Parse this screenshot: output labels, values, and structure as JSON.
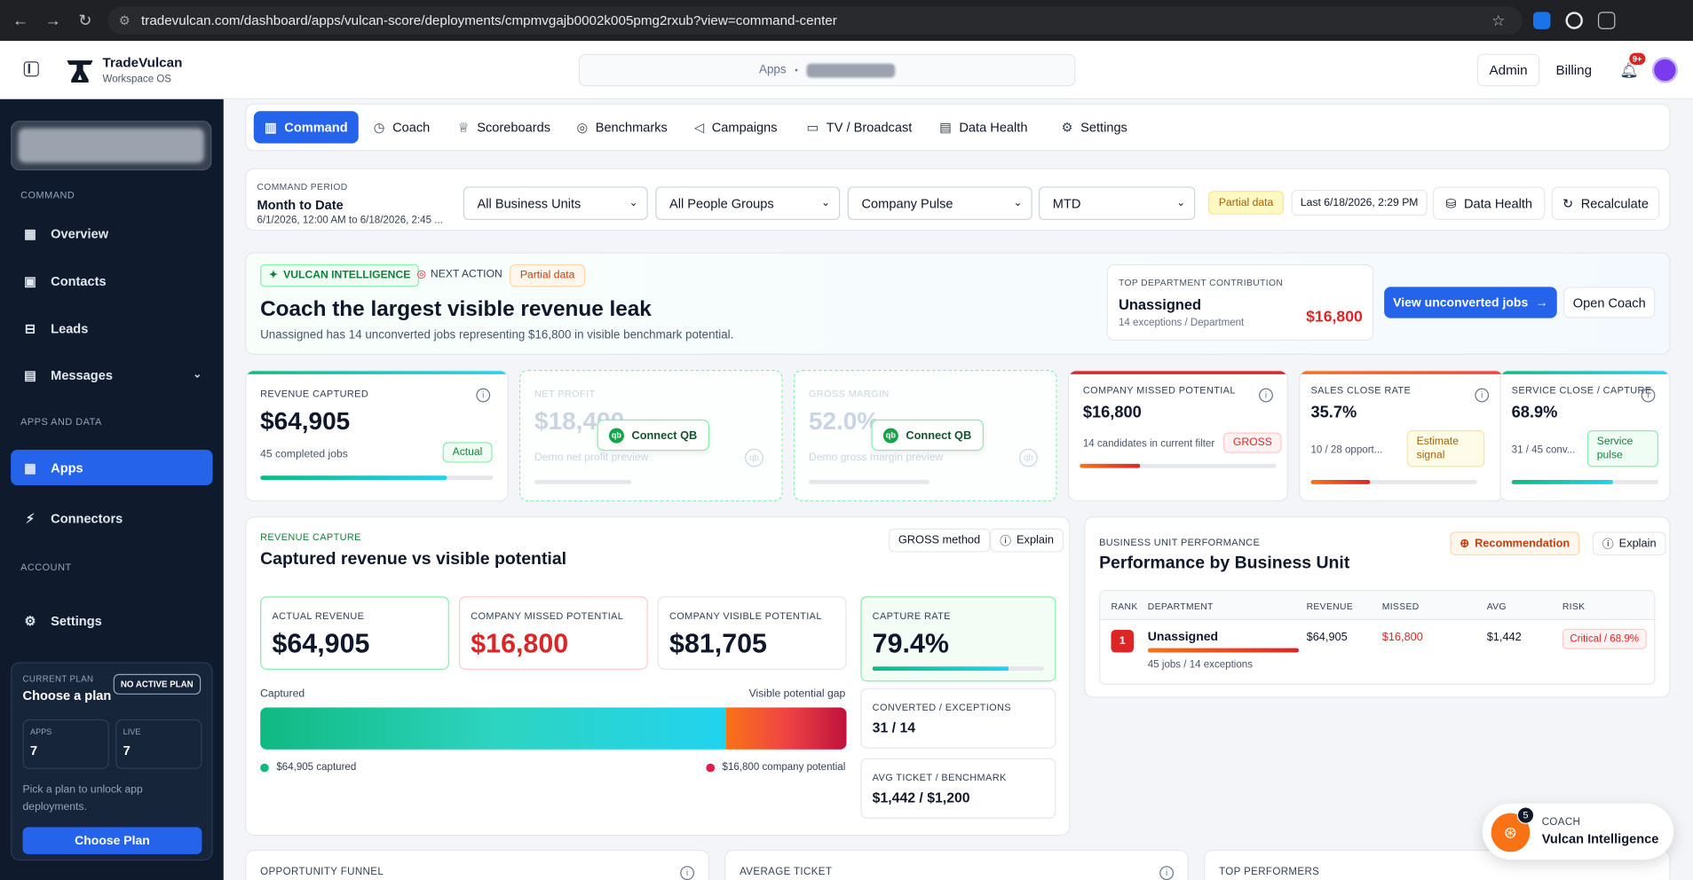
{
  "browser": {
    "url": "tradevulcan.com/dashboard/apps/vulcan-score/deployments/cmpmvgajb0002k005pmg2rxub?view=command-center"
  },
  "header": {
    "brand_name": "TradeVulcan",
    "brand_sub": "Workspace OS",
    "apps_label": "Apps",
    "apps_sep": "•",
    "admin": "Admin",
    "billing": "Billing",
    "notif_count": "9+"
  },
  "sidebar": {
    "sections": {
      "command": "COMMAND",
      "apps": "APPS AND DATA",
      "account": "ACCOUNT"
    },
    "items": {
      "overview": "Overview",
      "contacts": "Contacts",
      "leads": "Leads",
      "messages": "Messages",
      "apps": "Apps",
      "connectors": "Connectors",
      "settings": "Settings"
    },
    "plan": {
      "label": "CURRENT PLAN",
      "title": "Choose a plan",
      "badge": "NO ACTIVE PLAN",
      "apps_label": "APPS",
      "apps_value": "7",
      "live_label": "LIVE",
      "live_value": "7",
      "desc": "Pick a plan to unlock app deployments.",
      "button": "Choose Plan"
    }
  },
  "tabs": [
    "Command",
    "Coach",
    "Scoreboards",
    "Benchmarks",
    "Campaigns",
    "TV / Broadcast",
    "Data Health",
    "Settings"
  ],
  "period": {
    "label": "COMMAND PERIOD",
    "value": "Month to Date",
    "range": "6/1/2026, 12:00 AM to 6/18/2026, 2:45 ...",
    "business_unit": "All Business Units",
    "people_group": "All People Groups",
    "pulse": "Company Pulse",
    "range_select": "MTD",
    "partial": "Partial data",
    "last": "Last 6/18/2026, 2:29 PM",
    "data_health": "Data Health",
    "recalculate": "Recalculate"
  },
  "intel": {
    "badge": "VULCAN INTELLIGENCE",
    "next_action": "NEXT ACTION",
    "partial": "Partial data",
    "title": "Coach the largest visible revenue leak",
    "subtitle": "Unassigned has 14 unconverted jobs representing $16,800 in visible benchmark potential.",
    "top_label": "TOP DEPARTMENT CONTRIBUTION",
    "top_value": "Unassigned",
    "top_sub": "14 exceptions / Department",
    "top_amount": "$16,800",
    "view_btn": "View unconverted jobs",
    "coach_btn": "Open Coach"
  },
  "metrics": {
    "revenue": {
      "label": "REVENUE CAPTURED",
      "value": "$64,905",
      "sub": "45 completed jobs",
      "tag": "Actual",
      "progress": 0.8
    },
    "net_profit": {
      "label": "NET PROFIT",
      "value": "$18,400",
      "sub": "Demo net profit preview",
      "cta": "Connect QB"
    },
    "gross_margin": {
      "label": "GROSS MARGIN",
      "value": "52.0%",
      "sub": "Demo gross margin preview",
      "cta": "Connect QB"
    },
    "missed": {
      "label": "COMPANY MISSED POTENTIAL",
      "value": "$16,800",
      "sub": "14 candidates in current filter",
      "tag": "GROSS",
      "progress": 0.31
    },
    "sales_close": {
      "label": "SALES CLOSE RATE",
      "value": "35.7%",
      "sub": "10 / 28 opport...",
      "tag": "Estimate signal",
      "progress": 0.357
    },
    "service_close": {
      "label": "SERVICE CLOSE / CAPTURE",
      "value": "68.9%",
      "sub": "31 / 45 conv...",
      "tag": "Service pulse",
      "progress": 0.689
    }
  },
  "revenue_capture": {
    "label": "REVENUE CAPTURE",
    "title": "Captured revenue vs visible potential",
    "method": "GROSS method",
    "explain": "Explain",
    "actual_label": "ACTUAL REVENUE",
    "actual_value": "$64,905",
    "missed_label": "COMPANY MISSED POTENTIAL",
    "missed_value": "$16,800",
    "visible_label": "COMPANY VISIBLE POTENTIAL",
    "visible_value": "$81,705",
    "capture_label": "CAPTURE RATE",
    "capture_value": "79.4%",
    "capture_rate": 0.794,
    "bar_left": "Captured",
    "bar_right": "Visible potential gap",
    "captured_amount": 64905,
    "gap_amount": 16800,
    "legend_captured": "$64,905 captured",
    "legend_gap": "$16,800 company potential",
    "converted_label": "CONVERTED / EXCEPTIONS",
    "converted_value": "31 / 14",
    "avg_label": "AVG TICKET / BENCHMARK",
    "avg_value": "$1,442 / $1,200"
  },
  "business_unit": {
    "label": "BUSINESS UNIT PERFORMANCE",
    "title": "Performance by Business Unit",
    "recommendation": "Recommendation",
    "explain": "Explain",
    "columns": [
      "RANK",
      "DEPARTMENT",
      "REVENUE",
      "MISSED",
      "AVG",
      "RISK"
    ],
    "row": {
      "rank": "1",
      "department": "Unassigned",
      "sub": "45 jobs / 14 exceptions",
      "revenue": "$64,905",
      "missed": "$16,800",
      "avg": "$1,442",
      "risk": "Critical / 68.9%"
    }
  },
  "bottom": [
    "OPPORTUNITY FUNNEL",
    "AVERAGE TICKET",
    "TOP PERFORMERS"
  ],
  "coach": {
    "label": "COACH",
    "name": "Vulcan Intelligence",
    "count": "5"
  }
}
